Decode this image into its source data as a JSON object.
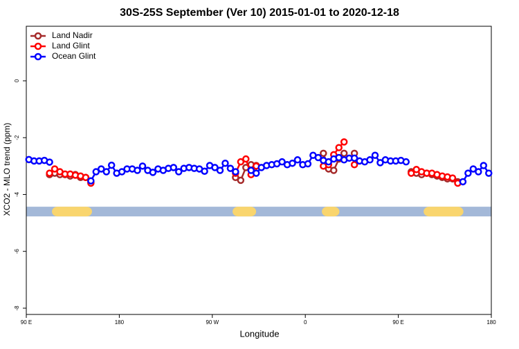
{
  "chart_data": {
    "type": "line",
    "title": "30S-25S September (Ver 10)   2015-01-01 to 2020-12-18",
    "x_label": "Longitude",
    "y_label": "XCO2 - MLO trend (ppm)",
    "x": [
      92.5,
      97.5,
      102.5,
      107.5,
      112.5,
      117.5,
      122.5,
      127.5,
      132.5,
      137.5,
      142.5,
      147.5,
      152.5,
      157.5,
      162.5,
      167.5,
      172.5,
      177.5,
      182.5,
      187.5,
      192.5,
      197.5,
      202.5,
      207.5,
      212.5,
      217.5,
      222.5,
      227.5,
      232.5,
      237.5,
      242.5,
      247.5,
      252.5,
      257.5,
      262.5,
      267.5,
      272.5,
      277.5,
      282.5,
      287.5,
      292.5,
      297.5,
      302.5,
      307.5,
      312.5,
      317.5,
      322.5,
      327.5,
      332.5,
      337.5,
      342.5,
      347.5,
      352.5,
      357.5,
      362.5,
      367.5,
      372.5,
      377.5,
      382.5,
      387.5,
      392.5,
      397.5,
      402.5,
      407.5,
      412.5,
      417.5,
      422.5,
      427.5,
      432.5,
      437.5,
      442.5,
      447.5,
      452.5,
      457.5,
      462.5,
      467.5,
      472.5,
      477.5,
      482.5,
      487.5,
      492.5,
      497.5,
      502.5,
      507.5,
      512.5,
      517.5,
      522.5,
      527.5,
      532.5,
      537.5
    ],
    "series": [
      {
        "name": "Land Nadir",
        "color": "#a52a2a",
        "values": [
          null,
          null,
          null,
          null,
          -3.3,
          -3.25,
          -3.3,
          -3.3,
          -3.35,
          -3.3,
          -3.4,
          -3.4,
          -3.55,
          null,
          null,
          null,
          null,
          null,
          null,
          null,
          null,
          null,
          null,
          null,
          null,
          null,
          null,
          null,
          null,
          null,
          null,
          null,
          null,
          null,
          null,
          null,
          null,
          null,
          null,
          null,
          -3.4,
          -3.5,
          -3.05,
          -2.95,
          -2.98,
          null,
          null,
          null,
          null,
          null,
          null,
          null,
          null,
          null,
          null,
          null,
          null,
          -2.55,
          -3.1,
          -3.15,
          -2.75,
          -2.55,
          null,
          -2.55,
          null,
          null,
          null,
          null,
          null,
          null,
          null,
          null,
          null,
          null,
          -3.2,
          -3.25,
          -3.3,
          -3.25,
          -3.3,
          -3.35,
          -3.4,
          -3.45,
          -3.45,
          -3.55,
          null,
          null,
          null,
          null,
          null,
          null
        ]
      },
      {
        "name": "Land Glint",
        "color": "#ff0000",
        "values": [
          null,
          null,
          null,
          null,
          -3.25,
          -3.1,
          -3.2,
          -3.28,
          -3.28,
          -3.32,
          -3.35,
          -3.4,
          -3.6,
          null,
          null,
          null,
          null,
          null,
          null,
          null,
          null,
          null,
          null,
          null,
          null,
          null,
          null,
          null,
          null,
          null,
          null,
          null,
          null,
          null,
          null,
          null,
          null,
          null,
          null,
          null,
          -3.25,
          -2.85,
          -2.75,
          -3.3,
          -3.0,
          null,
          null,
          null,
          null,
          null,
          null,
          null,
          null,
          null,
          null,
          null,
          null,
          -3.0,
          -2.95,
          -2.6,
          -2.35,
          -2.15,
          null,
          -2.95,
          null,
          null,
          null,
          null,
          null,
          null,
          null,
          null,
          null,
          null,
          -3.25,
          -3.12,
          -3.2,
          -3.25,
          -3.25,
          -3.3,
          -3.35,
          -3.38,
          -3.42,
          -3.6,
          null,
          null,
          null,
          null,
          null,
          null
        ]
      },
      {
        "name": "Ocean Glint",
        "color": "#0000ff",
        "values": [
          -2.77,
          -2.82,
          -2.82,
          -2.8,
          -2.86,
          null,
          null,
          null,
          null,
          null,
          null,
          null,
          -3.52,
          -3.2,
          -3.1,
          -3.2,
          -2.97,
          -3.25,
          -3.2,
          -3.1,
          -3.1,
          -3.15,
          -3.0,
          -3.15,
          -3.22,
          -3.1,
          -3.15,
          -3.08,
          -3.05,
          -3.2,
          -3.08,
          -3.05,
          -3.08,
          -3.1,
          -3.18,
          -2.98,
          -3.05,
          -3.15,
          -2.9,
          -3.08,
          -3.2,
          null,
          null,
          -3.15,
          -3.25,
          -3.05,
          -2.98,
          -2.95,
          -2.92,
          -2.85,
          -2.95,
          -2.9,
          -2.78,
          -2.95,
          -2.92,
          -2.62,
          -2.7,
          -2.8,
          -2.85,
          -2.75,
          -2.7,
          -2.78,
          -2.72,
          -2.72,
          -2.82,
          -2.85,
          -2.78,
          -2.62,
          -2.88,
          -2.78,
          -2.82,
          -2.82,
          -2.8,
          -2.85,
          null,
          null,
          null,
          null,
          null,
          null,
          null,
          null,
          null,
          null,
          -3.55,
          -3.25,
          -3.1,
          -3.2,
          -2.98,
          -3.25
        ]
      }
    ],
    "xlim": [
      90,
      540
    ],
    "xticks": [
      {
        "value": 90,
        "label": "90 E"
      },
      180,
      {
        "value": 270,
        "label": "90 W"
      },
      {
        "value": 360,
        "label": "0"
      },
      {
        "value": 450,
        "label": "90 E"
      },
      {
        "value": 540,
        "label": "180"
      }
    ],
    "ylim": [
      -8.22,
      1.92
    ],
    "yticks": [
      -8,
      -6,
      -4,
      -2,
      0
    ],
    "legend": "top-left",
    "surface_band": {
      "y": -4.6,
      "ocean_color": "#a3b8d8",
      "land_color": "#f9d56e",
      "land": [
        [
          114.8,
          153.6
        ],
        [
          289.6,
          312.4
        ],
        [
          376,
          393
        ],
        [
          474.5,
          513
        ]
      ]
    }
  }
}
